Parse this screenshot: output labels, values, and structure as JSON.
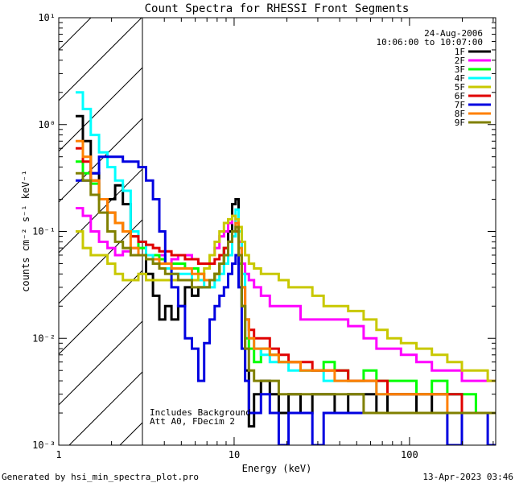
{
  "chart_data": {
    "type": "line",
    "title": "Count Spectra for RHESSI Front Segments",
    "xlabel": "Energy (keV)",
    "ylabel": "counts cm⁻² s⁻¹ keV⁻¹",
    "xscale": "log",
    "yscale": "log",
    "xlim": [
      1,
      310
    ],
    "ylim": [
      0.001,
      10
    ],
    "x_ticks": [
      1,
      10,
      100
    ],
    "x_tick_labels": [
      "1",
      "10",
      "100"
    ],
    "y_ticks": [
      0.001,
      0.01,
      0.1,
      1,
      10
    ],
    "y_tick_labels": [
      "10⁻³",
      "10⁻²",
      "10⁻¹",
      "10⁰",
      "10¹"
    ],
    "hatched_region_max_kev": 3,
    "date_label": "24-Aug-2006",
    "time_range_label": "10:06:00 to 10:07:00",
    "annotations": [
      "Includes Background",
      "Att A0, FDecim 2"
    ],
    "legend_position": "top-right",
    "series": [
      {
        "name": "1F",
        "color": "#000000",
        "x": [
          1.3,
          1.45,
          1.6,
          1.8,
          2.0,
          2.2,
          2.45,
          2.7,
          3.0,
          3.3,
          3.6,
          3.9,
          4.2,
          4.6,
          5.0,
          5.5,
          6.0,
          6.5,
          7.0,
          7.5,
          8.0,
          8.5,
          9.0,
          9.5,
          10.0,
          10.4,
          10.8,
          11.3,
          11.8,
          12.5,
          13.5,
          15,
          17,
          19,
          22,
          26,
          30,
          35,
          40,
          50,
          60,
          70,
          80,
          100,
          120,
          150,
          180,
          220,
          260,
          300
        ],
        "y": [
          1.2,
          0.7,
          0.35,
          0.2,
          0.2,
          0.27,
          0.18,
          0.1,
          0.08,
          0.04,
          0.025,
          0.015,
          0.02,
          0.015,
          0.02,
          0.03,
          0.025,
          0.03,
          0.03,
          0.035,
          0.04,
          0.05,
          0.07,
          0.1,
          0.18,
          0.2,
          0.08,
          0.02,
          0.005,
          0.0015,
          0.003,
          0.004,
          0.003,
          0.002,
          0.003,
          0.002,
          0.003,
          0.003,
          0.002,
          0.003,
          0.003,
          0.002,
          0.003,
          0.003,
          0.002,
          0.003,
          0.003,
          0.002,
          0.002,
          0.002
        ]
      },
      {
        "name": "2F",
        "color": "#ff00ff",
        "x": [
          1.3,
          1.45,
          1.6,
          1.8,
          2.0,
          2.2,
          2.45,
          2.7,
          3.0,
          3.3,
          3.6,
          3.9,
          4.2,
          4.6,
          5.0,
          5.5,
          6.0,
          6.5,
          7.0,
          7.5,
          8.0,
          8.5,
          9.0,
          9.5,
          10.0,
          10.4,
          10.8,
          11.3,
          11.8,
          12.5,
          13.5,
          15,
          17,
          19,
          22,
          26,
          30,
          35,
          40,
          50,
          60,
          70,
          80,
          100,
          120,
          150,
          180,
          220,
          260,
          300
        ],
        "y": [
          0.165,
          0.14,
          0.1,
          0.08,
          0.07,
          0.06,
          0.065,
          0.07,
          0.06,
          0.06,
          0.055,
          0.06,
          0.05,
          0.055,
          0.06,
          0.06,
          0.055,
          0.05,
          0.05,
          0.06,
          0.07,
          0.09,
          0.1,
          0.12,
          0.14,
          0.12,
          0.08,
          0.05,
          0.04,
          0.035,
          0.03,
          0.025,
          0.02,
          0.02,
          0.02,
          0.015,
          0.015,
          0.015,
          0.015,
          0.013,
          0.01,
          0.008,
          0.008,
          0.007,
          0.006,
          0.005,
          0.005,
          0.004,
          0.004,
          0.004
        ]
      },
      {
        "name": "3F",
        "color": "#00ff00",
        "x": [
          1.3,
          1.45,
          1.6,
          1.8,
          2.0,
          2.2,
          2.45,
          2.7,
          3.0,
          3.3,
          3.6,
          3.9,
          4.2,
          4.6,
          5.0,
          5.5,
          6.0,
          6.5,
          7.0,
          7.5,
          8.0,
          8.5,
          9.0,
          9.5,
          10.0,
          10.4,
          10.8,
          11.3,
          11.8,
          12.5,
          13.5,
          15,
          17,
          19,
          22,
          26,
          30,
          35,
          40,
          50,
          60,
          70,
          80,
          100,
          120,
          150,
          180,
          220,
          260,
          300
        ],
        "y": [
          0.45,
          0.35,
          0.28,
          0.2,
          0.15,
          0.12,
          0.1,
          0.09,
          0.07,
          0.06,
          0.06,
          0.055,
          0.05,
          0.05,
          0.05,
          0.045,
          0.045,
          0.04,
          0.035,
          0.035,
          0.04,
          0.05,
          0.07,
          0.08,
          0.1,
          0.1,
          0.05,
          0.02,
          0.01,
          0.008,
          0.006,
          0.008,
          0.007,
          0.006,
          0.006,
          0.005,
          0.005,
          0.006,
          0.005,
          0.004,
          0.005,
          0.004,
          0.004,
          0.004,
          0.003,
          0.004,
          0.003,
          0.003,
          0.002,
          0.002
        ]
      },
      {
        "name": "4F",
        "color": "#00ffff",
        "x": [
          1.3,
          1.45,
          1.6,
          1.8,
          2.0,
          2.2,
          2.45,
          2.7,
          3.0,
          3.3,
          3.6,
          3.9,
          4.2,
          4.6,
          5.0,
          5.5,
          6.0,
          6.5,
          7.0,
          7.5,
          8.0,
          8.5,
          9.0,
          9.5,
          10.0,
          10.4,
          10.8,
          11.3,
          11.8,
          12.5,
          13.5,
          15,
          17,
          19,
          22,
          26,
          30,
          35,
          40,
          50,
          60,
          70,
          80,
          100,
          120,
          150,
          180,
          220,
          260,
          300
        ],
        "y": [
          2.0,
          1.4,
          0.8,
          0.55,
          0.4,
          0.3,
          0.24,
          0.1,
          0.08,
          0.06,
          0.05,
          0.045,
          0.045,
          0.04,
          0.04,
          0.04,
          0.035,
          0.035,
          0.03,
          0.03,
          0.035,
          0.04,
          0.05,
          0.06,
          0.09,
          0.16,
          0.1,
          0.04,
          0.015,
          0.01,
          0.008,
          0.007,
          0.006,
          0.006,
          0.005,
          0.005,
          0.005,
          0.004,
          0.004,
          0.004,
          0.004,
          0.003,
          0.003,
          0.003,
          0.003,
          0.003,
          0.003,
          0.002,
          0.002,
          0.002
        ]
      },
      {
        "name": "5F",
        "color": "#c8c800",
        "x": [
          1.3,
          1.45,
          1.6,
          1.8,
          2.0,
          2.2,
          2.45,
          2.7,
          3.0,
          3.3,
          3.6,
          3.9,
          4.2,
          4.6,
          5.0,
          5.5,
          6.0,
          6.5,
          7.0,
          7.5,
          8.0,
          8.5,
          9.0,
          9.5,
          10.0,
          10.4,
          10.8,
          11.3,
          11.8,
          12.5,
          13.5,
          15,
          17,
          19,
          22,
          26,
          30,
          35,
          40,
          50,
          60,
          70,
          80,
          100,
          120,
          150,
          180,
          220,
          260,
          300
        ],
        "y": [
          0.1,
          0.07,
          0.06,
          0.06,
          0.05,
          0.04,
          0.035,
          0.035,
          0.04,
          0.035,
          0.035,
          0.035,
          0.035,
          0.035,
          0.035,
          0.035,
          0.035,
          0.04,
          0.045,
          0.06,
          0.08,
          0.1,
          0.12,
          0.13,
          0.14,
          0.13,
          0.11,
          0.08,
          0.06,
          0.05,
          0.045,
          0.04,
          0.04,
          0.035,
          0.03,
          0.03,
          0.025,
          0.02,
          0.02,
          0.018,
          0.015,
          0.012,
          0.01,
          0.009,
          0.008,
          0.007,
          0.006,
          0.005,
          0.005,
          0.004
        ]
      },
      {
        "name": "6F",
        "color": "#e00000",
        "x": [
          1.3,
          1.45,
          1.6,
          1.8,
          2.0,
          2.2,
          2.45,
          2.7,
          3.0,
          3.3,
          3.6,
          3.9,
          4.2,
          4.6,
          5.0,
          5.5,
          6.0,
          6.5,
          7.0,
          7.5,
          8.0,
          8.5,
          9.0,
          9.5,
          10.0,
          10.4,
          10.8,
          11.3,
          11.8,
          12.5,
          13.5,
          15,
          17,
          19,
          22,
          26,
          30,
          35,
          40,
          50,
          60,
          70,
          80,
          100,
          120,
          150,
          180,
          220,
          260,
          300
        ],
        "y": [
          0.6,
          0.45,
          0.3,
          0.2,
          0.15,
          0.12,
          0.1,
          0.09,
          0.08,
          0.075,
          0.07,
          0.065,
          0.065,
          0.06,
          0.06,
          0.055,
          0.055,
          0.05,
          0.05,
          0.05,
          0.055,
          0.06,
          0.07,
          0.08,
          0.1,
          0.1,
          0.06,
          0.03,
          0.015,
          0.012,
          0.01,
          0.01,
          0.008,
          0.007,
          0.006,
          0.006,
          0.005,
          0.005,
          0.005,
          0.004,
          0.004,
          0.004,
          0.003,
          0.003,
          0.003,
          0.003,
          0.003,
          0.002,
          0.002,
          0.002
        ]
      },
      {
        "name": "7F",
        "color": "#0000e0",
        "x": [
          1.3,
          1.45,
          1.6,
          1.8,
          2.0,
          2.2,
          2.45,
          2.7,
          3.0,
          3.3,
          3.6,
          3.9,
          4.2,
          4.6,
          5.0,
          5.5,
          6.0,
          6.5,
          7.0,
          7.5,
          8.0,
          8.5,
          9.0,
          9.5,
          10.0,
          10.4,
          10.8,
          11.3,
          11.8,
          12.5,
          13.5,
          15,
          17,
          19,
          22,
          26,
          30,
          35,
          40,
          50,
          60,
          70,
          80,
          100,
          120,
          150,
          180,
          220,
          260,
          300
        ],
        "y": [
          0.3,
          0.3,
          0.35,
          0.5,
          0.5,
          0.5,
          0.45,
          0.45,
          0.4,
          0.3,
          0.2,
          0.1,
          0.05,
          0.03,
          0.02,
          0.01,
          0.008,
          0.004,
          0.009,
          0.015,
          0.02,
          0.025,
          0.03,
          0.04,
          0.05,
          0.06,
          0.03,
          0.008,
          0.004,
          0.002,
          0.002,
          0.003,
          0.002,
          0.001,
          0.002,
          0.002,
          0.001,
          0.002,
          0.002,
          0.002,
          0.002,
          0.002,
          0.002,
          0.002,
          0.002,
          0.002,
          0.001,
          0.002,
          0.002,
          0.001
        ]
      },
      {
        "name": "8F",
        "color": "#ff8000",
        "x": [
          1.3,
          1.45,
          1.6,
          1.8,
          2.0,
          2.2,
          2.45,
          2.7,
          3.0,
          3.3,
          3.6,
          3.9,
          4.2,
          4.6,
          5.0,
          5.5,
          6.0,
          6.5,
          7.0,
          7.5,
          8.0,
          8.5,
          9.0,
          9.5,
          10.0,
          10.4,
          10.8,
          11.3,
          11.8,
          12.5,
          13.5,
          15,
          17,
          19,
          22,
          26,
          30,
          35,
          40,
          50,
          60,
          70,
          80,
          100,
          120,
          150,
          180,
          220,
          260,
          300
        ],
        "y": [
          0.7,
          0.5,
          0.3,
          0.2,
          0.15,
          0.12,
          0.1,
          0.07,
          0.06,
          0.055,
          0.055,
          0.05,
          0.05,
          0.045,
          0.045,
          0.045,
          0.04,
          0.04,
          0.035,
          0.035,
          0.04,
          0.05,
          0.06,
          0.08,
          0.1,
          0.12,
          0.07,
          0.03,
          0.015,
          0.01,
          0.008,
          0.008,
          0.007,
          0.006,
          0.006,
          0.005,
          0.005,
          0.005,
          0.004,
          0.004,
          0.004,
          0.003,
          0.003,
          0.003,
          0.003,
          0.003,
          0.002,
          0.002,
          0.002,
          0.002
        ]
      },
      {
        "name": "9F",
        "color": "#808000",
        "x": [
          1.3,
          1.45,
          1.6,
          1.8,
          2.0,
          2.2,
          2.45,
          2.7,
          3.0,
          3.3,
          3.6,
          3.9,
          4.2,
          4.6,
          5.0,
          5.5,
          6.0,
          6.5,
          7.0,
          7.5,
          8.0,
          8.5,
          9.0,
          9.5,
          10.0,
          10.4,
          10.8,
          11.3,
          11.8,
          12.5,
          13.5,
          15,
          17,
          19,
          22,
          26,
          30,
          35,
          40,
          50,
          60,
          70,
          80,
          100,
          120,
          150,
          180,
          220,
          260,
          300
        ],
        "y": [
          0.35,
          0.3,
          0.22,
          0.15,
          0.1,
          0.08,
          0.07,
          0.06,
          0.06,
          0.055,
          0.05,
          0.045,
          0.04,
          0.04,
          0.035,
          0.035,
          0.03,
          0.03,
          0.03,
          0.035,
          0.04,
          0.05,
          0.06,
          0.08,
          0.1,
          0.11,
          0.06,
          0.02,
          0.008,
          0.005,
          0.004,
          0.004,
          0.004,
          0.003,
          0.003,
          0.003,
          0.003,
          0.003,
          0.003,
          0.003,
          0.002,
          0.002,
          0.002,
          0.002,
          0.002,
          0.002,
          0.002,
          0.002,
          0.002,
          0.002
        ]
      }
    ]
  },
  "footer": {
    "generated_by": "Generated by hsi_min_spectra_plot.pro",
    "timestamp": "13-Apr-2023 03:46"
  }
}
